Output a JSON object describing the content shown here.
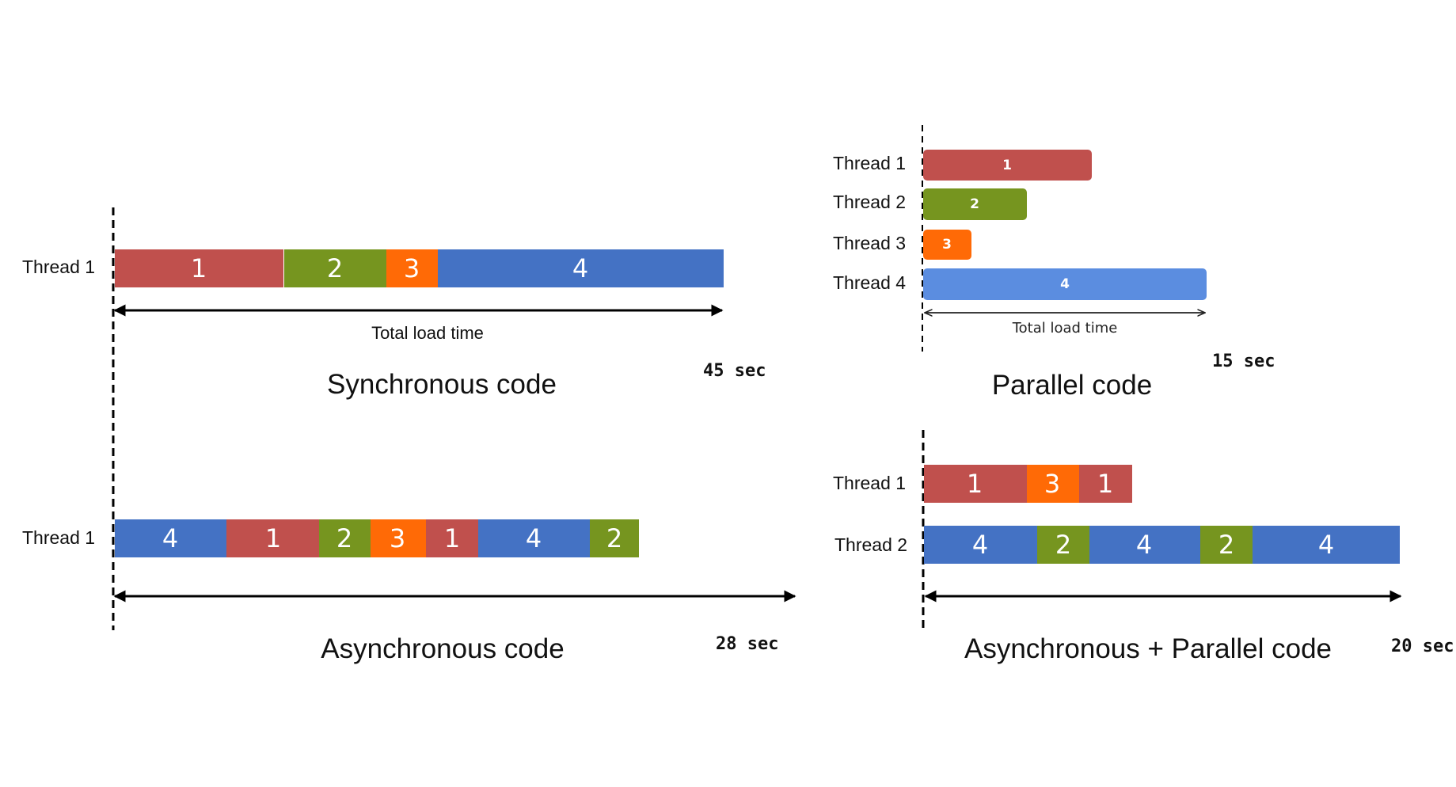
{
  "colors": {
    "task1": "#c0504d",
    "task2": "#76951f",
    "task3": "#ff6a06",
    "task4": "#4472c4",
    "task4_light": "#5b8de0"
  },
  "panels": {
    "synchronous": {
      "caption": "Synchronous code",
      "duration": "45 sec",
      "total_label": "Total load time",
      "threads": [
        {
          "label": "Thread 1",
          "segments": [
            "1",
            "2",
            "3",
            "4"
          ]
        }
      ]
    },
    "parallel": {
      "caption": "Parallel code",
      "duration": "15 sec",
      "total_label": "Total load time",
      "threads": [
        {
          "label": "Thread 1",
          "segments": [
            "1"
          ]
        },
        {
          "label": "Thread 2",
          "segments": [
            "2"
          ]
        },
        {
          "label": "Thread 3",
          "segments": [
            "3"
          ]
        },
        {
          "label": "Thread 4",
          "segments": [
            "4"
          ]
        }
      ]
    },
    "asynchronous": {
      "caption": "Asynchronous code",
      "duration": "28 sec",
      "threads": [
        {
          "label": "Thread 1",
          "segments": [
            "4",
            "1",
            "2",
            "3",
            "1",
            "4",
            "2"
          ]
        }
      ]
    },
    "async_parallel": {
      "caption": "Asynchronous + Parallel code",
      "duration": "20 sec",
      "threads": [
        {
          "label": "Thread 1",
          "segments": [
            "1",
            "3",
            "1"
          ]
        },
        {
          "label": "Thread 2",
          "segments": [
            "4",
            "2",
            "4",
            "2",
            "4"
          ]
        }
      ]
    }
  }
}
